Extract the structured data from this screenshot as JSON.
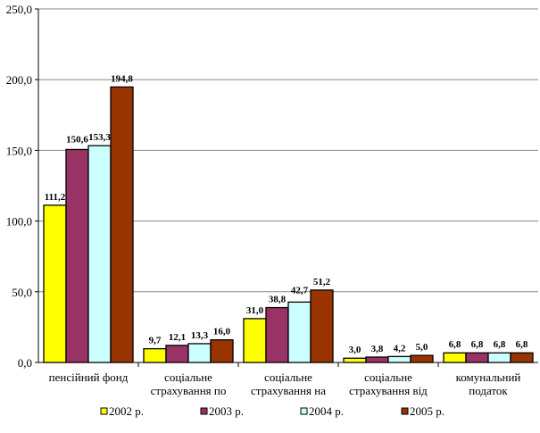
{
  "chart_data": {
    "type": "bar",
    "title": "",
    "xlabel": "",
    "ylabel": "",
    "ylim": [
      0,
      250
    ],
    "yticks": [
      "0,0",
      "50,0",
      "100,0",
      "150,0",
      "200,0",
      "250,0"
    ],
    "grid": true,
    "legend_position": "bottom",
    "categories": [
      [
        "пенсійний фонд"
      ],
      [
        "соціальне",
        "страхування  по"
      ],
      [
        "соціальне",
        "страхування  на"
      ],
      [
        "соціальне",
        "страхування  від"
      ],
      [
        "комунальний",
        "податок"
      ]
    ],
    "series": [
      {
        "name": "2002 р.",
        "color": "#FFFF00",
        "values": [
          111.2,
          9.7,
          31.0,
          3.0,
          6.8
        ],
        "labels": [
          "111,2",
          "9,7",
          "31,0",
          "3,0",
          "6,8"
        ]
      },
      {
        "name": "2003 р.",
        "color": "#993366",
        "values": [
          150.6,
          12.1,
          38.8,
          3.8,
          6.8
        ],
        "labels": [
          "150,6",
          "12,1",
          "38,8",
          "3,8",
          "6,8"
        ]
      },
      {
        "name": "2004 р.",
        "color": "#CCFFFF",
        "values": [
          153.3,
          13.3,
          42.7,
          4.2,
          6.8
        ],
        "labels": [
          "153,3",
          "13,3",
          "42,7",
          "4,2",
          "6,8"
        ]
      },
      {
        "name": "2005 р.",
        "color": "#993300",
        "values": [
          194.8,
          16.0,
          51.2,
          5.0,
          6.8
        ],
        "labels": [
          "194,8",
          "16,0",
          "51,2",
          "5,0",
          "6,8"
        ]
      }
    ]
  }
}
